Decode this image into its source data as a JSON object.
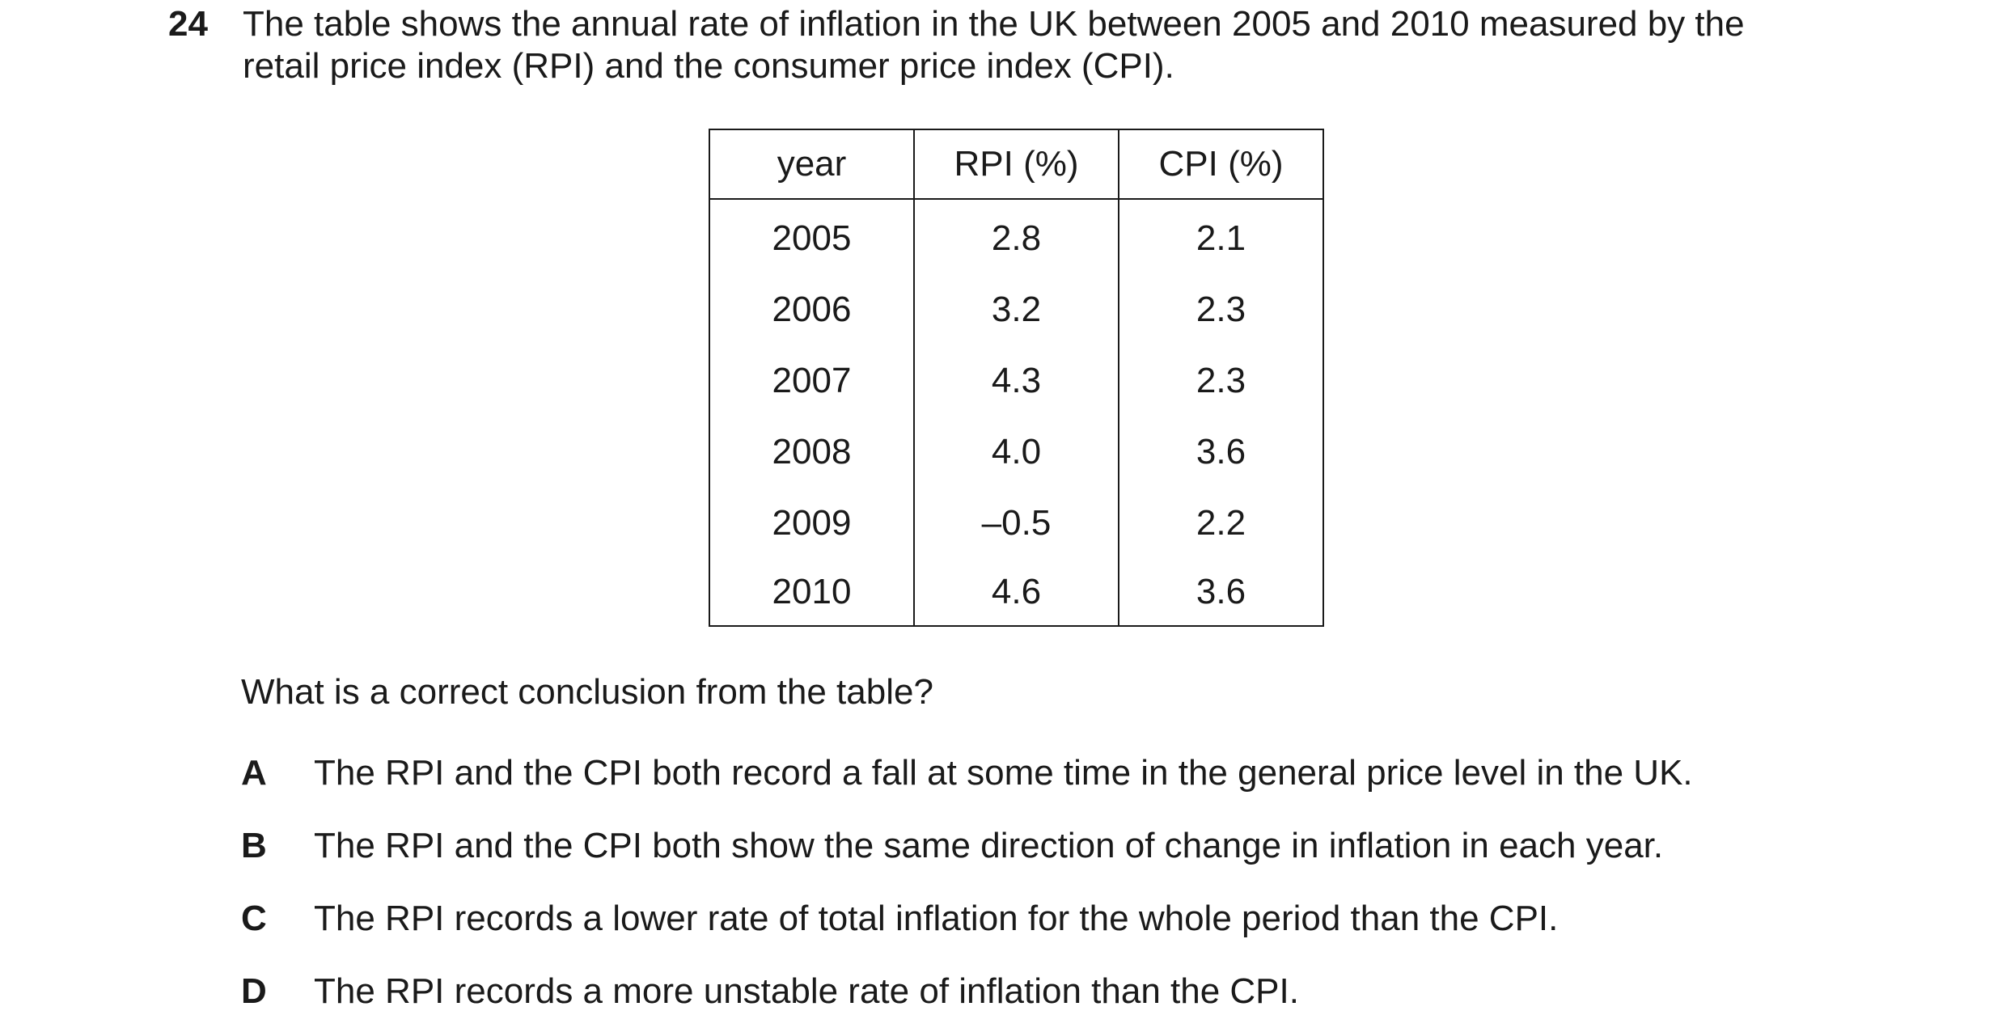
{
  "question": {
    "number": "24",
    "stem_lines": [
      "The table shows the annual rate of inflation in the UK between 2005 and 2010 measured by the",
      "retail price index (RPI) and the consumer price index (CPI)."
    ],
    "table": {
      "headers": [
        "year",
        "RPI (%)",
        "CPI (%)"
      ],
      "rows": [
        [
          "2005",
          "2.8",
          "2.1"
        ],
        [
          "2006",
          "3.2",
          "2.3"
        ],
        [
          "2007",
          "4.3",
          "2.3"
        ],
        [
          "2008",
          "4.0",
          "3.6"
        ],
        [
          "2009",
          "–0.5",
          "2.2"
        ],
        [
          "2010",
          "4.6",
          "3.6"
        ]
      ]
    },
    "prompt": "What is a correct conclusion from the table?",
    "options": [
      {
        "letter": "A",
        "text": "The RPI and the CPI both record a fall at some time in the general price level in the UK."
      },
      {
        "letter": "B",
        "text": "The RPI and the CPI both show the same direction of change in inflation in each year."
      },
      {
        "letter": "C",
        "text": "The RPI records a lower rate of total inflation for the whole period than the CPI."
      },
      {
        "letter": "D",
        "text": "The RPI records a more unstable rate of inflation than the CPI."
      }
    ]
  }
}
